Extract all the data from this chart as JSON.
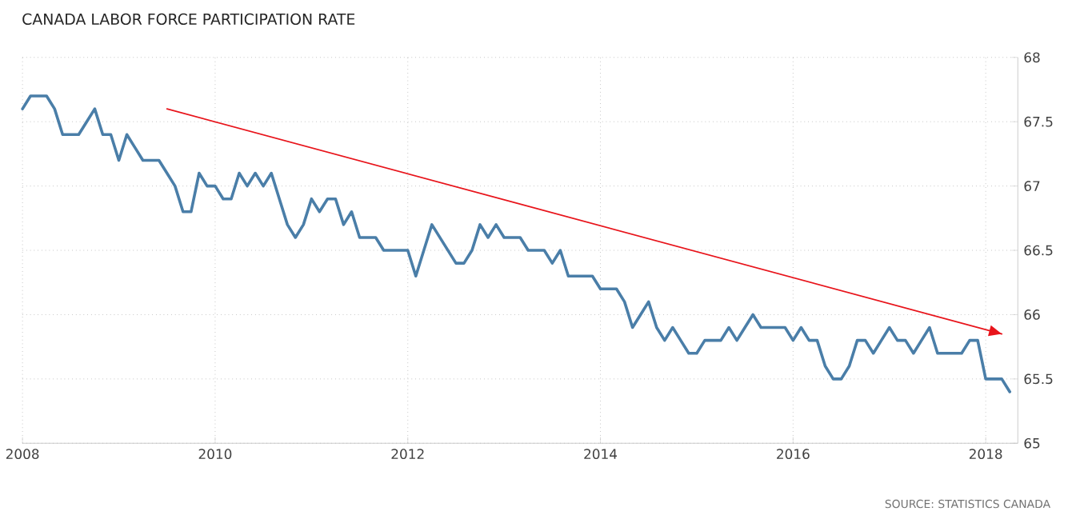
{
  "chart_data": {
    "type": "line",
    "title": "CANADA LABOR FORCE PARTICIPATION RATE",
    "x": [
      "2008-01",
      "2008-02",
      "2008-03",
      "2008-04",
      "2008-05",
      "2008-06",
      "2008-07",
      "2008-08",
      "2008-09",
      "2008-10",
      "2008-11",
      "2008-12",
      "2009-01",
      "2009-02",
      "2009-03",
      "2009-04",
      "2009-05",
      "2009-06",
      "2009-07",
      "2009-08",
      "2009-09",
      "2009-10",
      "2009-11",
      "2009-12",
      "2010-01",
      "2010-02",
      "2010-03",
      "2010-04",
      "2010-05",
      "2010-06",
      "2010-07",
      "2010-08",
      "2010-09",
      "2010-10",
      "2010-11",
      "2010-12",
      "2011-01",
      "2011-02",
      "2011-03",
      "2011-04",
      "2011-05",
      "2011-06",
      "2011-07",
      "2011-08",
      "2011-09",
      "2011-10",
      "2011-11",
      "2011-12",
      "2012-01",
      "2012-02",
      "2012-03",
      "2012-04",
      "2012-05",
      "2012-06",
      "2012-07",
      "2012-08",
      "2012-09",
      "2012-10",
      "2012-11",
      "2012-12",
      "2013-01",
      "2013-02",
      "2013-03",
      "2013-04",
      "2013-05",
      "2013-06",
      "2013-07",
      "2013-08",
      "2013-09",
      "2013-10",
      "2013-11",
      "2013-12",
      "2014-01",
      "2014-02",
      "2014-03",
      "2014-04",
      "2014-05",
      "2014-06",
      "2014-07",
      "2014-08",
      "2014-09",
      "2014-10",
      "2014-11",
      "2014-12",
      "2015-01",
      "2015-02",
      "2015-03",
      "2015-04",
      "2015-05",
      "2015-06",
      "2015-07",
      "2015-08",
      "2015-09",
      "2015-10",
      "2015-11",
      "2015-12",
      "2016-01",
      "2016-02",
      "2016-03",
      "2016-04",
      "2016-05",
      "2016-06",
      "2016-07",
      "2016-08",
      "2016-09",
      "2016-10",
      "2016-11",
      "2016-12",
      "2017-01",
      "2017-02",
      "2017-03",
      "2017-04",
      "2017-05",
      "2017-06",
      "2017-07",
      "2017-08",
      "2017-09",
      "2017-10",
      "2017-11",
      "2017-12",
      "2018-01",
      "2018-02",
      "2018-03",
      "2018-04"
    ],
    "series": [
      {
        "color": "#4a7ea8",
        "values": [
          67.6,
          67.7,
          67.7,
          67.7,
          67.6,
          67.4,
          67.4,
          67.4,
          67.5,
          67.6,
          67.4,
          67.4,
          67.2,
          67.4,
          67.3,
          67.2,
          67.2,
          67.2,
          67.1,
          67.0,
          66.8,
          66.8,
          67.1,
          67.0,
          67.0,
          66.9,
          66.9,
          67.1,
          67.0,
          67.1,
          67.0,
          67.1,
          66.9,
          66.7,
          66.6,
          66.7,
          66.9,
          66.8,
          66.9,
          66.9,
          66.7,
          66.8,
          66.6,
          66.6,
          66.6,
          66.5,
          66.5,
          66.5,
          66.5,
          66.3,
          66.5,
          66.7,
          66.6,
          66.5,
          66.4,
          66.4,
          66.5,
          66.7,
          66.6,
          66.7,
          66.6,
          66.6,
          66.6,
          66.5,
          66.5,
          66.5,
          66.4,
          66.5,
          66.3,
          66.3,
          66.3,
          66.3,
          66.2,
          66.2,
          66.2,
          66.1,
          65.9,
          66.0,
          66.1,
          65.9,
          65.8,
          65.9,
          65.8,
          65.7,
          65.7,
          65.8,
          65.8,
          65.8,
          65.9,
          65.8,
          65.9,
          66.0,
          65.9,
          65.9,
          65.9,
          65.9,
          65.8,
          65.9,
          65.8,
          65.8,
          65.6,
          65.5,
          65.5,
          65.6,
          65.8,
          65.8,
          65.7,
          65.8,
          65.9,
          65.8,
          65.8,
          65.7,
          65.8,
          65.9,
          65.7,
          65.7,
          65.7,
          65.7,
          65.8,
          65.8,
          65.5,
          65.5,
          65.5,
          65.4
        ]
      },
      {
        "type": "line",
        "color": "#e8141b",
        "x": [
          "2009-07",
          "2018-03"
        ],
        "values": [
          67.6,
          65.85
        ]
      }
    ],
    "xlim": [
      "2008-01",
      "2018-05"
    ],
    "xticks": [
      {
        "value": "2008-01",
        "label": "2008"
      },
      {
        "value": "2010-01",
        "label": "2010"
      },
      {
        "value": "2012-01",
        "label": "2012"
      },
      {
        "value": "2014-01",
        "label": "2014"
      },
      {
        "value": "2016-01",
        "label": "2016"
      },
      {
        "value": "2018-01",
        "label": "2018"
      }
    ],
    "ylim": [
      65,
      68
    ],
    "yticks": [
      65,
      65.5,
      66,
      66.5,
      67,
      67.5,
      68
    ],
    "grid": true,
    "marker": "none",
    "line_style": "solid",
    "annotations": [
      "SOURCE: STATISTICS CANADA"
    ]
  }
}
